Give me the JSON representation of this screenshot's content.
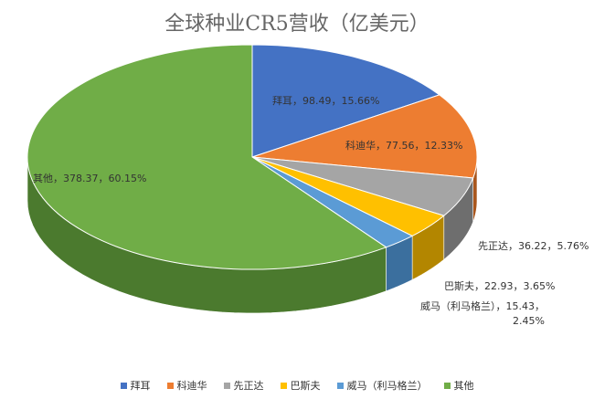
{
  "chart_data": {
    "type": "pie",
    "title": "全球种业CR5营收（亿美元）",
    "slices": [
      {
        "name": "拜耳",
        "value": 98.49,
        "percent": 15.66,
        "label": "拜耳，98.49，15.66%",
        "color": "#4472c4",
        "side": "#2e5090"
      },
      {
        "name": "科迪华",
        "value": 77.56,
        "percent": 12.33,
        "label": "科迪华，77.56，12.33%",
        "color": "#ed7d31",
        "side": "#a9561d"
      },
      {
        "name": "先正达",
        "value": 36.22,
        "percent": 5.76,
        "label": "先正达，36.22，5.76%",
        "color": "#a5a5a5",
        "side": "#6e6e6e"
      },
      {
        "name": "巴斯夫",
        "value": 22.93,
        "percent": 3.65,
        "label": "巴斯夫，22.93，3.65%",
        "color": "#ffc000",
        "side": "#b38600"
      },
      {
        "name": "威马（利马格兰）",
        "value": 15.43,
        "percent": 2.45,
        "label": "威马（利马格兰），15.43，2.45%",
        "color": "#5b9bd5",
        "side": "#3b6f9e"
      },
      {
        "name": "其他",
        "value": 378.37,
        "percent": 60.15,
        "label": "其他，378.37，60.15%",
        "color": "#70ad47",
        "side": "#4b7a2e"
      }
    ],
    "legend_position": "bottom"
  }
}
